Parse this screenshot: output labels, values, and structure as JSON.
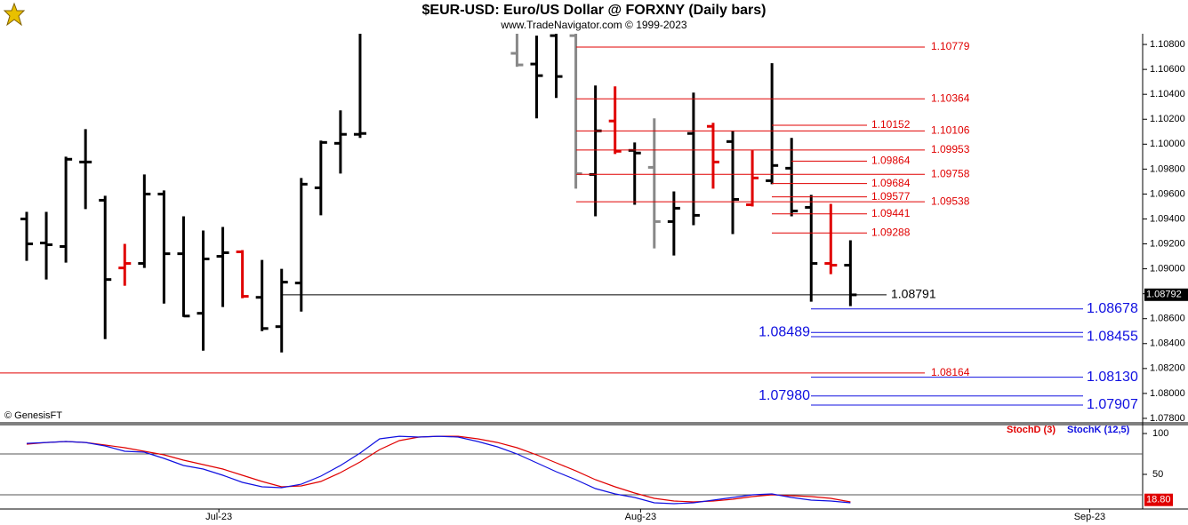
{
  "chart_data": [
    {
      "type": "ohlc",
      "title": "$EUR-USD:  Euro/US Dollar @ FORXNY  (Daily bars)",
      "subtitle": "www.TradeNavigator.com © 1999-2023",
      "credit": "© GenesisFT",
      "x": [
        0,
        1,
        2,
        3,
        4,
        5,
        6,
        7,
        8,
        9,
        10,
        11,
        12,
        13,
        14,
        15,
        16,
        17,
        25,
        26,
        27,
        28,
        29,
        30,
        31,
        32,
        33,
        34,
        35,
        36,
        37,
        38,
        39,
        40,
        41,
        42
      ],
      "open": [
        1.094,
        1.09207,
        1.09179,
        1.09857,
        1.0955,
        1.09007,
        1.09043,
        1.096,
        1.09121,
        1.08643,
        1.091,
        1.09136,
        1.08771,
        1.08536,
        1.08886,
        1.0965,
        1.10007,
        1.10079,
        1.10729,
        1.10643,
        1.10871,
        1.10871,
        1.09757,
        1.10186,
        1.0995,
        1.09814,
        1.09379,
        1.10086,
        1.10143,
        1.10021,
        1.09514,
        1.09707,
        1.09807,
        1.09493,
        1.09043,
        1.09029
      ],
      "high": [
        1.09457,
        1.09457,
        1.099,
        1.10121,
        1.09586,
        1.092,
        1.09757,
        1.09629,
        1.09421,
        1.09307,
        1.09336,
        1.0915,
        1.09071,
        1.09,
        1.09729,
        1.10029,
        1.10271,
        1.1105,
        1.11,
        1.10871,
        1.1102,
        1.1101,
        1.10471,
        1.10464,
        1.10014,
        1.10207,
        1.09621,
        1.10414,
        1.10171,
        1.10107,
        1.0995,
        1.1065,
        1.1005,
        1.09593,
        1.09521,
        1.09229
      ],
      "low": [
        1.09064,
        1.08914,
        1.0905,
        1.09479,
        1.08436,
        1.08864,
        1.09007,
        1.08721,
        1.08614,
        1.08343,
        1.08693,
        1.08764,
        1.085,
        1.08329,
        1.08657,
        1.09429,
        1.09764,
        1.1005,
        1.10621,
        1.10207,
        1.10371,
        1.09643,
        1.09421,
        1.09921,
        1.09514,
        1.09164,
        1.09107,
        1.0935,
        1.09643,
        1.09279,
        1.095,
        1.09679,
        1.09421,
        1.08736,
        1.08957,
        1.087
      ],
      "close": [
        1.092,
        1.09193,
        1.09879,
        1.09857,
        1.08914,
        1.09043,
        1.096,
        1.09121,
        1.08621,
        1.09079,
        1.09129,
        1.08779,
        1.08521,
        1.08893,
        1.09679,
        1.10014,
        1.10079,
        1.10086,
        1.10636,
        1.1055,
        1.10543,
        1.09764,
        1.10107,
        1.09943,
        1.09929,
        1.09379,
        1.09486,
        1.09429,
        1.09857,
        1.09557,
        1.09729,
        1.09829,
        1.09464,
        1.09043,
        1.09029,
        1.08791
      ],
      "bar_colors": [
        "#000",
        "#000",
        "#000",
        "#000",
        "#000",
        "#e00000",
        "#000",
        "#000",
        "#000",
        "#000",
        "#000",
        "#e00000",
        "#000",
        "#000",
        "#000",
        "#000",
        "#000",
        "#000",
        "#888",
        "#000",
        "#000",
        "#888",
        "#000",
        "#e00000",
        "#000",
        "#888",
        "#000",
        "#000",
        "#e00000",
        "#000",
        "#e00000",
        "#000",
        "#000",
        "#000",
        "#e00000",
        "#000"
      ],
      "xlim": [
        -1.36,
        56.9
      ],
      "ylim": [
        1.07764,
        1.10886
      ],
      "yticks": [
        {
          "value": 1.078,
          "label": "1.07800"
        },
        {
          "value": 1.08,
          "label": "1.08000"
        },
        {
          "value": 1.082,
          "label": "1.08200"
        },
        {
          "value": 1.084,
          "label": "1.08400"
        },
        {
          "value": 1.086,
          "label": "1.08600"
        },
        {
          "value": 1.088,
          "label": "1.08800"
        },
        {
          "value": 1.09,
          "label": "1.09000"
        },
        {
          "value": 1.092,
          "label": "1.09200"
        },
        {
          "value": 1.094,
          "label": "1.09400"
        },
        {
          "value": 1.096,
          "label": "1.09600"
        },
        {
          "value": 1.098,
          "label": "1.09800"
        },
        {
          "value": 1.1,
          "label": "1.10000"
        },
        {
          "value": 1.102,
          "label": "1.10200"
        },
        {
          "value": 1.104,
          "label": "1.10400"
        },
        {
          "value": 1.106,
          "label": "1.10600"
        },
        {
          "value": 1.108,
          "label": "1.10800"
        }
      ],
      "levels": {
        "values": [
          1.10779,
          1.10364,
          1.10152,
          1.10106,
          1.09953,
          1.09864,
          1.09758,
          1.09684,
          1.09577,
          1.09538,
          1.09441,
          1.09288,
          1.08791,
          1.08678,
          1.08489,
          1.08455,
          1.08164,
          1.0813,
          1.0798,
          1.07907
        ],
        "value_labels": [
          "1.10779",
          "1.10364",
          "1.10152",
          "1.10106",
          "1.09953",
          "1.09864",
          "1.09758",
          "1.09684",
          "1.09577",
          "1.09538",
          "1.09441",
          "1.09288",
          "1.08791",
          "1.08678",
          "1.08489",
          "1.08455",
          "1.08164",
          "1.08130",
          "1.07980",
          "1.07907"
        ],
        "colors": [
          "#e00000",
          "#e00000",
          "#e00000",
          "#e00000",
          "#e00000",
          "#e00000",
          "#e00000",
          "#e00000",
          "#e00000",
          "#e00000",
          "#e00000",
          "#e00000",
          "#000",
          "#1010e0",
          "#1010e0",
          "#1010e0",
          "#e00000",
          "#1010e0",
          "#1010e0",
          "#1010e0"
        ]
      },
      "current": 1.08792
    },
    {
      "type": "line",
      "x": [
        0,
        1,
        2,
        3,
        4,
        5,
        6,
        7,
        8,
        9,
        10,
        11,
        12,
        13,
        14,
        15,
        16,
        17,
        18,
        19,
        20,
        21,
        22,
        23,
        24,
        25,
        26,
        27,
        28,
        29,
        30,
        31,
        32,
        33,
        34,
        35,
        36,
        37,
        38,
        39,
        40,
        41,
        42
      ],
      "series": [
        {
          "name": "StochD (3)",
          "color": "#e00000",
          "values": [
            87.0,
            89.1,
            90.2,
            89.1,
            85.9,
            82.6,
            78.3,
            73.9,
            67.4,
            62.0,
            56.5,
            48.9,
            41.3,
            34.8,
            35.9,
            41.3,
            52.2,
            65.2,
            80.4,
            91.3,
            95.7,
            96.7,
            96.7,
            93.5,
            89.1,
            82.6,
            73.9,
            64.1,
            54.3,
            43.5,
            34.8,
            27.2,
            20.7,
            17.4,
            16.3,
            17.4,
            19.6,
            22.8,
            25.0,
            23.9,
            22.8,
            20.7,
            16.3
          ]
        },
        {
          "name": "StochK (12,5)",
          "color": "#1010e0",
          "values": [
            88.0,
            89.1,
            90.2,
            89.1,
            84.8,
            78.3,
            77.2,
            69.6,
            60.9,
            56.5,
            48.9,
            40.2,
            34.8,
            33.7,
            38.0,
            47.8,
            60.9,
            76.1,
            93.5,
            96.7,
            95.7,
            96.7,
            95.7,
            90.2,
            83.7,
            75.0,
            64.1,
            53.3,
            43.5,
            32.6,
            26.1,
            21.7,
            15.2,
            14.1,
            15.2,
            18.5,
            21.7,
            25.0,
            26.1,
            21.7,
            18.5,
            17.4,
            15.2
          ]
        }
      ],
      "xlim": [
        -1.36,
        56.9
      ],
      "ylim": [
        8.7,
        110.9
      ],
      "yticks": [
        100,
        50
      ],
      "grid_lines": [
        75,
        25
      ],
      "xticks": [
        {
          "value": 9.8,
          "label": "Jul-23"
        },
        {
          "value": 31.3,
          "label": "Aug-23"
        },
        {
          "value": 54.2,
          "label": "Sep-23"
        }
      ],
      "current": {
        "value": 18.8,
        "label": "18.80"
      }
    }
  ]
}
